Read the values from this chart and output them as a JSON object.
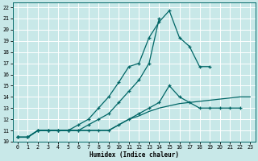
{
  "xlabel": "Humidex (Indice chaleur)",
  "background_color": "#c8e8e8",
  "line_color": "#006666",
  "grid_color": "#ffffff",
  "xlim": [
    -0.5,
    23.5
  ],
  "ylim": [
    10,
    22.4
  ],
  "xticks": [
    0,
    1,
    2,
    3,
    4,
    5,
    6,
    7,
    8,
    9,
    10,
    11,
    12,
    13,
    14,
    15,
    16,
    17,
    18,
    19,
    20,
    21,
    22,
    23
  ],
  "yticks": [
    10,
    11,
    12,
    13,
    14,
    15,
    16,
    17,
    18,
    19,
    20,
    21,
    22
  ],
  "line1_x": [
    0,
    1,
    2,
    3,
    4,
    5,
    6,
    7,
    8,
    9,
    10,
    11,
    12,
    13,
    14,
    15,
    16,
    17,
    18,
    19,
    20,
    21,
    22,
    23
  ],
  "line1_y": [
    10.4,
    10.4,
    11.0,
    11.0,
    11.0,
    11.0,
    11.0,
    11.0,
    11.0,
    11.0,
    11.5,
    12.0,
    12.3,
    12.7,
    13.0,
    13.2,
    13.4,
    13.5,
    13.6,
    13.7,
    13.8,
    13.9,
    14.0,
    14.0
  ],
  "line2_x": [
    0,
    1,
    2,
    3,
    4,
    5,
    6,
    7,
    8,
    9,
    10,
    11,
    12,
    13,
    14,
    15,
    16,
    17,
    18,
    19
  ],
  "line2_y": [
    10.4,
    10.4,
    11.0,
    11.0,
    11.0,
    11.0,
    11.5,
    12.0,
    13.0,
    14.0,
    15.3,
    16.7,
    17.0,
    19.3,
    20.7,
    21.7,
    19.3,
    18.5,
    16.7,
    16.7
  ],
  "line3_x": [
    0,
    1,
    2,
    3,
    4,
    5,
    6,
    7,
    8,
    9,
    10,
    11,
    12,
    13,
    14
  ],
  "line3_y": [
    10.4,
    10.4,
    11.0,
    11.0,
    11.0,
    11.0,
    11.0,
    11.5,
    12.0,
    12.5,
    13.5,
    14.5,
    15.5,
    17.0,
    21.0
  ],
  "line4_x": [
    0,
    1,
    2,
    3,
    4,
    5,
    6,
    7,
    8,
    9,
    10,
    11,
    12,
    13,
    14,
    15,
    16,
    17,
    18,
    19,
    20,
    21,
    22
  ],
  "line4_y": [
    10.4,
    10.4,
    11.0,
    11.0,
    11.0,
    11.0,
    11.0,
    11.0,
    11.0,
    11.0,
    11.5,
    12.0,
    12.5,
    13.0,
    13.5,
    15.0,
    14.0,
    13.5,
    13.0,
    13.0,
    13.0,
    13.0,
    13.0
  ]
}
